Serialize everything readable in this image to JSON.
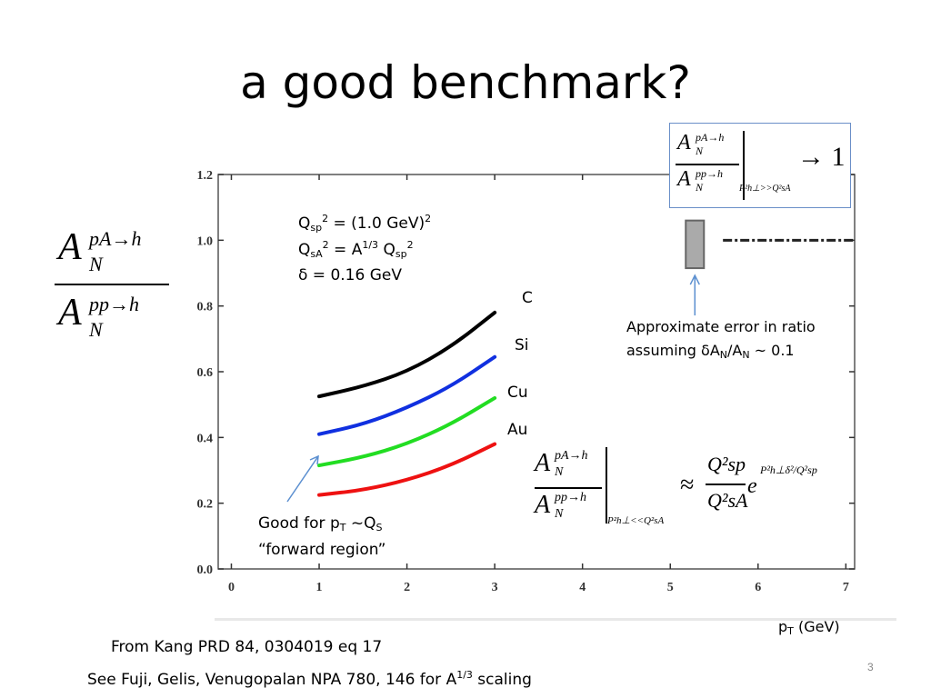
{
  "slide": {
    "title": "a good benchmark?",
    "page_number": "3",
    "footer_line1": "From Kang PRD 84, 0304019  eq 17",
    "footer_line2_main": "See Fuji, Gelis, Venugopalan  NPA 780, 146 for A",
    "footer_line2_sup": "1/3",
    "footer_line2_end": "  scaling"
  },
  "equations": {
    "ratio_y_axis": {
      "num_base": "A",
      "num_sup": "pA→h",
      "num_sub": "N",
      "den_base": "A",
      "den_sup": "pp→h",
      "den_sub": "N"
    },
    "limit_box": {
      "arrow_value": "→ 1",
      "condition": "P²h⊥>>Q²sA"
    },
    "approx_lower": {
      "approx": "≈",
      "q_num": "Q²sp",
      "q_den": "Q²sA",
      "exp_base": "e",
      "exp_power": "P²h⊥δ²/Q²sp",
      "condition": "P²h⊥<<Q²sA"
    }
  },
  "parameters": {
    "line1_main": "Q",
    "line1_sub": "sp",
    "line1_sup": "2",
    "line1_rest": " = (1.0 GeV)",
    "line1_rest_sup": "2",
    "line2_main": "Q",
    "line2_sub": "sA",
    "line2_sup": "2",
    "line2_mid": " = A",
    "line2_mid_sup": "1/3",
    "line2_q": " Q",
    "line2_q_sub": "sp",
    "line2_q_sup": "2",
    "line3": "δ = 0.16 GeV"
  },
  "annotations": {
    "error_line1": "Approximate error in ratio",
    "error_line2_a": "assuming δA",
    "error_line2_sub1": "N",
    "error_line2_b": "/A",
    "error_line2_sub2": "N",
    "error_line2_c": " ~ 0.1",
    "good_line1_a": "Good for p",
    "good_line1_sub1": "T",
    "good_line1_b": " ~Q",
    "good_line1_sub2": "S",
    "good_line2": "“forward region”",
    "x_axis_a": "p",
    "x_axis_sub": "T",
    "x_axis_b": " (GeV)"
  },
  "chart_data": {
    "type": "line",
    "xlabel": "pT (GeV)",
    "ylabel": "",
    "xlim": [
      -0.15,
      7.1
    ],
    "ylim": [
      0.0,
      1.2
    ],
    "x_ticks": [
      "0",
      "1",
      "2",
      "3",
      "4",
      "5",
      "6",
      "7"
    ],
    "y_ticks": [
      "0.0",
      "0.2",
      "0.4",
      "0.6",
      "0.8",
      "1.0",
      "1.2"
    ],
    "grid": false,
    "series": [
      {
        "name": "C",
        "color": "#000000",
        "x": [
          1.0,
          1.5,
          2.0,
          2.5,
          3.0
        ],
        "y": [
          0.525,
          0.555,
          0.6,
          0.675,
          0.78
        ]
      },
      {
        "name": "Si",
        "color": "#1030e0",
        "x": [
          1.0,
          1.5,
          2.0,
          2.5,
          3.0
        ],
        "y": [
          0.41,
          0.44,
          0.49,
          0.555,
          0.645
        ]
      },
      {
        "name": "Cu",
        "color": "#22dd22",
        "x": [
          1.0,
          1.5,
          2.0,
          2.5,
          3.0
        ],
        "y": [
          0.315,
          0.34,
          0.38,
          0.44,
          0.52
        ]
      },
      {
        "name": "Au",
        "color": "#ee1111",
        "x": [
          1.0,
          1.5,
          2.0,
          2.5,
          3.0
        ],
        "y": [
          0.225,
          0.24,
          0.27,
          0.315,
          0.38
        ]
      }
    ],
    "reference_line": {
      "y": 1.0,
      "x_start": 5.6,
      "x_end": 7.1,
      "style": "dash-dot"
    },
    "error_bar": {
      "x": 5.28,
      "y_low": 0.915,
      "y_high": 1.06,
      "fill": "#aaaaaa"
    }
  }
}
